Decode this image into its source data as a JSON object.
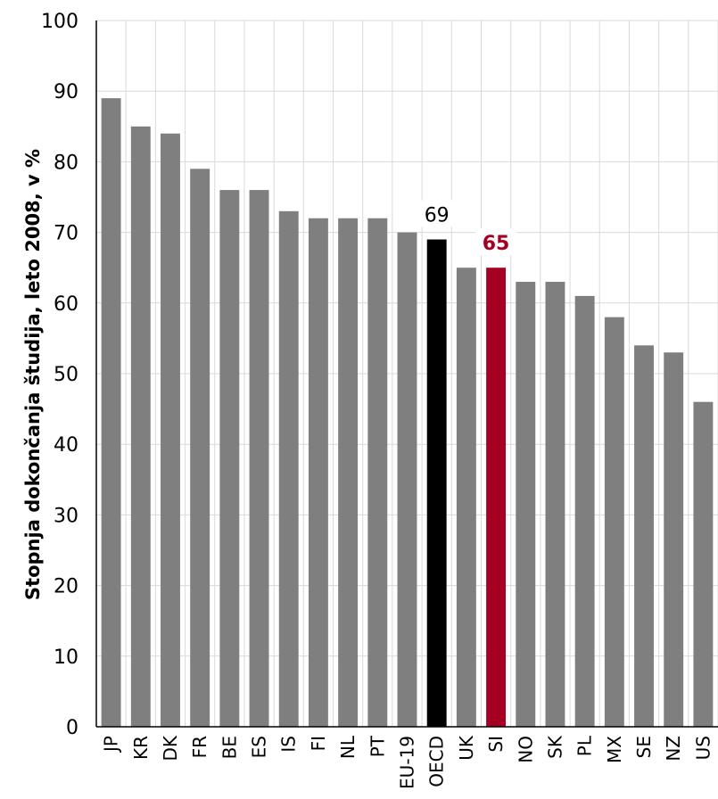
{
  "chart_data": {
    "type": "bar",
    "title": "",
    "xlabel": "",
    "ylabel": "Stopnja dokončanja študija, leto 2008, v %",
    "ylim": [
      0,
      100
    ],
    "yticks": [
      0,
      10,
      20,
      30,
      40,
      50,
      60,
      70,
      80,
      90,
      100
    ],
    "grid": true,
    "categories": [
      "JP",
      "KR",
      "DK",
      "FR",
      "BE",
      "ES",
      "IS",
      "FI",
      "NL",
      "PT",
      "EU-19",
      "OECD",
      "UK",
      "SI",
      "NO",
      "SK",
      "PL",
      "MX",
      "SE",
      "NZ",
      "US"
    ],
    "values": [
      89,
      85,
      84,
      79,
      76,
      76,
      73,
      72,
      72,
      72,
      70,
      69,
      65,
      65,
      63,
      63,
      61,
      58,
      54,
      53,
      46
    ],
    "colors": {
      "default": "#7f7f7f",
      "OECD": "#000000",
      "SI": "#a50021",
      "grid": "#d9d9d9",
      "axis": "#000000"
    },
    "data_labels": [
      {
        "category": "OECD",
        "text": "69",
        "bold": false,
        "color": "#000000"
      },
      {
        "category": "SI",
        "text": "65",
        "bold": true,
        "color": "#a50021"
      }
    ]
  }
}
